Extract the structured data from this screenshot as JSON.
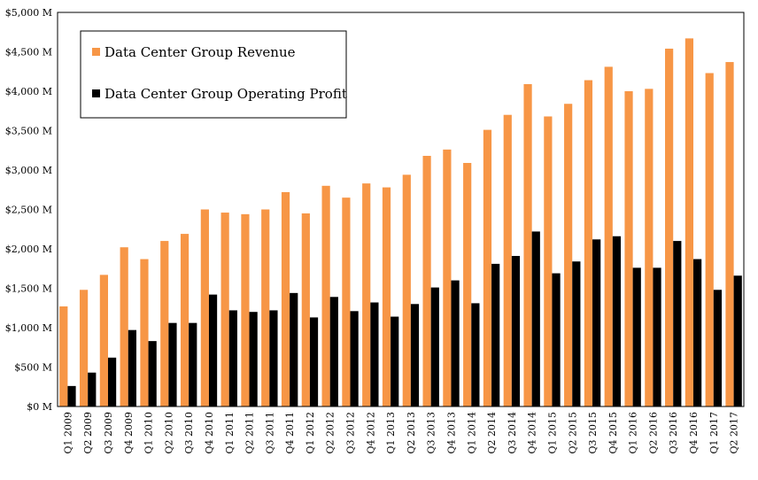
{
  "chart_data": {
    "type": "bar",
    "categories": [
      "Q1 2009",
      "Q2 2009",
      "Q3 2009",
      "Q4 2009",
      "Q1 2010",
      "Q2 2010",
      "Q3 2010",
      "Q4 2010",
      "Q1 2011",
      "Q2 2011",
      "Q3 2011",
      "Q4 2011",
      "Q1 2012",
      "Q2 2012",
      "Q3 2012",
      "Q4 2012",
      "Q1 2013",
      "Q2 2013",
      "Q3 2013",
      "Q4 2013",
      "Q1 2014",
      "Q2 2014",
      "Q3 2014",
      "Q4 2014",
      "Q1 2015",
      "Q2 2015",
      "Q3 2015",
      "Q4 2015",
      "Q1 2016",
      "Q2 2016",
      "Q3 2016",
      "Q4 2016",
      "Q1 2017",
      "Q2 2017"
    ],
    "series": [
      {
        "name": "Data Center Group Revenue",
        "color": "#f79646",
        "values": [
          1270,
          1480,
          1670,
          2020,
          1870,
          2100,
          2190,
          2500,
          2460,
          2440,
          2500,
          2720,
          2450,
          2800,
          2650,
          2830,
          2780,
          2940,
          3180,
          3260,
          3090,
          3510,
          3700,
          4090,
          3680,
          3840,
          4140,
          4310,
          4000,
          4030,
          4540,
          4670,
          4230,
          4370
        ]
      },
      {
        "name": "Data Center Group Operating Profit",
        "color": "#000000",
        "values": [
          260,
          430,
          620,
          970,
          830,
          1060,
          1060,
          1420,
          1220,
          1200,
          1220,
          1440,
          1130,
          1390,
          1210,
          1320,
          1140,
          1300,
          1510,
          1600,
          1310,
          1810,
          1910,
          2220,
          1690,
          1840,
          2120,
          2160,
          1760,
          1760,
          2100,
          1870,
          1480,
          1660
        ]
      }
    ],
    "y_ticks": [
      "$0 M",
      "$500 M",
      "$1,000 M",
      "$1,500 M",
      "$2,000 M",
      "$2,500 M",
      "$3,000 M",
      "$3,500 M",
      "$4,000 M",
      "$4,500 M",
      "$5,000 M"
    ],
    "ylim": [
      0,
      5000
    ],
    "legend_position": "top-left",
    "grid": false
  }
}
